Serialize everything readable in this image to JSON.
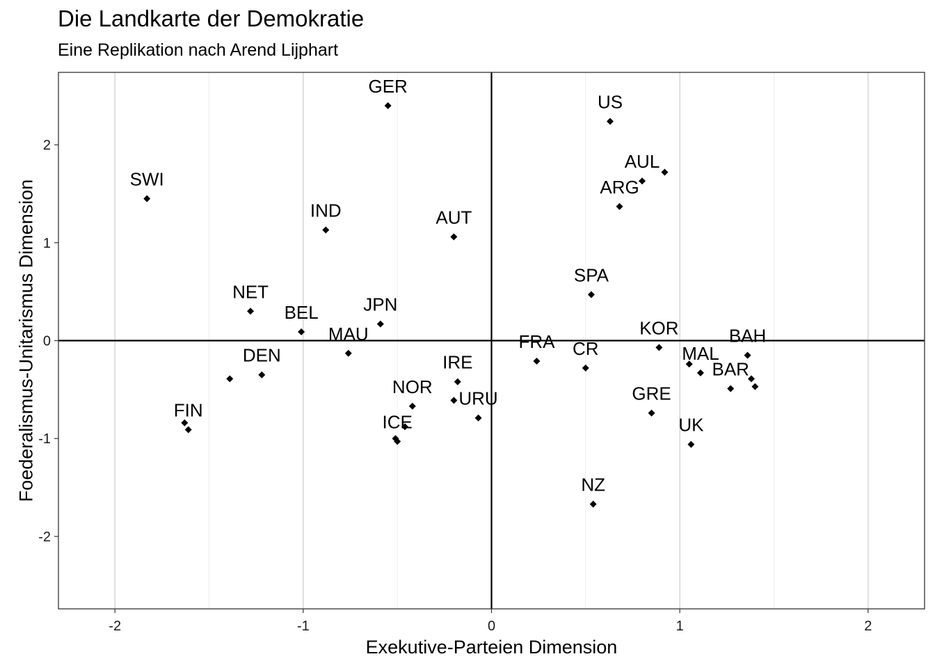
{
  "chart_data": {
    "type": "scatter",
    "title": "Die Landkarte der Demokratie",
    "subtitle": "Eine Replikation nach Arend Lijphart",
    "xlabel": "Exekutive-Parteien Dimension",
    "ylabel": "Foederalismus-Unitarismus Dimension",
    "xlim": [
      -2.3,
      2.3
    ],
    "ylim": [
      2.74,
      -2.74
    ],
    "y_reversed": true,
    "x_ticks": [
      -2,
      -1,
      0,
      1,
      2
    ],
    "y_ticks": [
      -2,
      -1,
      0,
      1,
      2
    ],
    "grid": true,
    "reference_lines": {
      "x": 0,
      "y": 0
    },
    "points": [
      {
        "label": "NZ",
        "x": 0.54,
        "y": -1.67
      },
      {
        "label": "UK",
        "x": 1.06,
        "y": -1.06
      },
      {
        "label": "GRE",
        "x": 0.85,
        "y": -0.74
      },
      {
        "label": "BAR",
        "x": 1.27,
        "y": -0.49
      },
      {
        "label": "",
        "x": 1.4,
        "y": -0.47
      },
      {
        "label": "",
        "x": 1.38,
        "y": -0.39
      },
      {
        "label": "MAL",
        "x": 1.11,
        "y": -0.33
      },
      {
        "label": "BAH",
        "x": 1.36,
        "y": -0.15
      },
      {
        "label": "KOR",
        "x": 0.89,
        "y": -0.07
      },
      {
        "label": "",
        "x": 1.05,
        "y": -0.24
      },
      {
        "label": "CR",
        "x": 0.5,
        "y": -0.28
      },
      {
        "label": "FRA",
        "x": 0.24,
        "y": -0.21
      },
      {
        "label": "URU",
        "x": -0.07,
        "y": -0.79
      },
      {
        "label": "IRE",
        "x": -0.18,
        "y": -0.42
      },
      {
        "label": "",
        "x": -0.2,
        "y": -0.61
      },
      {
        "label": "ICE",
        "x": -0.5,
        "y": -1.03
      },
      {
        "label": "",
        "x": -0.51,
        "y": -1.0
      },
      {
        "label": "NOR",
        "x": -0.42,
        "y": -0.67
      },
      {
        "label": "",
        "x": -0.46,
        "y": -0.88
      },
      {
        "label": "FIN",
        "x": -1.61,
        "y": -0.91
      },
      {
        "label": "",
        "x": -1.63,
        "y": -0.84
      },
      {
        "label": "DEN",
        "x": -1.22,
        "y": -0.35
      },
      {
        "label": "",
        "x": -1.39,
        "y": -0.39
      },
      {
        "label": "MAU",
        "x": -0.76,
        "y": -0.13
      },
      {
        "label": "BEL",
        "x": -1.01,
        "y": 0.09
      },
      {
        "label": "NET",
        "x": -1.28,
        "y": 0.3
      },
      {
        "label": "JPN",
        "x": -0.59,
        "y": 0.17
      },
      {
        "label": "SPA",
        "x": 0.53,
        "y": 0.47
      },
      {
        "label": "IND",
        "x": -0.88,
        "y": 1.13
      },
      {
        "label": "AUT",
        "x": -0.2,
        "y": 1.06
      },
      {
        "label": "SWI",
        "x": -1.83,
        "y": 1.45
      },
      {
        "label": "ARG",
        "x": 0.68,
        "y": 1.37
      },
      {
        "label": "AUL",
        "x": 0.8,
        "y": 1.63
      },
      {
        "label": "",
        "x": 0.92,
        "y": 1.72
      },
      {
        "label": "US",
        "x": 0.63,
        "y": 2.24
      },
      {
        "label": "GER",
        "x": -0.55,
        "y": 2.4
      }
    ]
  }
}
